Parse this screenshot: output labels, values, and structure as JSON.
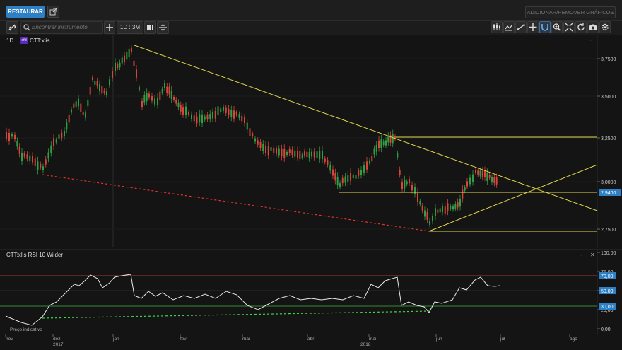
{
  "top_bar": {
    "restore_label": "RESTAURAR",
    "add_remove_label": "ADICIONAR/REMOVER GRÁFICOS"
  },
  "toolbar": {
    "search_placeholder": "Encontrar instrumento",
    "period_label": "1D : 3M",
    "icons": [
      "link-icon",
      "search-icon",
      "plus-icon",
      "chart-style-icon",
      "compare-icon",
      "candlestick-icon",
      "indicator-icon",
      "trendline-icon",
      "crosshair-icon",
      "magnet-icon",
      "zoom-icon",
      "fit-icon",
      "reset-icon",
      "screenshot-icon",
      "settings-icon"
    ]
  },
  "price_panel": {
    "interval": "1D",
    "symbol": "CTT:xlis",
    "y_ticks": [
      "3,7500",
      "3,5000",
      "3,2500",
      "3,0000",
      "2,7500"
    ],
    "last_price": "2,9400",
    "minimize_label": "–"
  },
  "rsi_panel": {
    "title": "CTT:xlis  RSI 10 Wilder",
    "y_ticks": [
      "100,00",
      "75,00",
      "50,00",
      "25,00",
      "0,00"
    ],
    "level_70": "70,00",
    "level_50": "50,00",
    "level_30": "30,00",
    "minimize_label": "–",
    "close_label": "✕",
    "footer_note": "Preço indicativo"
  },
  "x_axis": {
    "months": [
      "nov",
      "dez",
      "jan",
      "fev",
      "mar",
      "abr",
      "mai",
      "jun",
      "jul",
      "ago"
    ],
    "years": [
      "2017",
      "2018"
    ]
  },
  "colors": {
    "up": "#2ea043",
    "down": "#d9453b",
    "trendline": "#e3d64a",
    "support_dashed": "#e0332b",
    "rsi_support": "#3fd63f",
    "accent": "#2e7fc4",
    "last_price_bg": "#2e7fc4"
  }
}
